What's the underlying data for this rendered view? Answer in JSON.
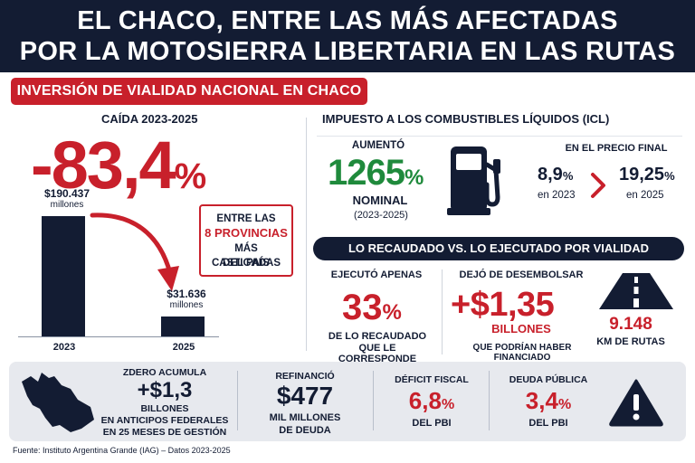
{
  "header": {
    "title_line1": "EL CHACO, ENTRE LAS MÁS AFECTADAS",
    "title_line2": "POR LA MOTOSIERRA LIBERTARIA EN LAS RUTAS"
  },
  "section_banner": "INVERSIÓN DE VIALIDAD NACIONAL EN CHACO",
  "drop": {
    "label": "CAÍDA 2023-2025",
    "value": "-83,4",
    "unit": "%",
    "chart_data": {
      "type": "bar",
      "categories": [
        "2023",
        "2025"
      ],
      "values": [
        190437,
        31636
      ],
      "value_labels": [
        "$190.437",
        "$31.636"
      ],
      "unit_label": "millones",
      "ylim": [
        0,
        200000
      ]
    },
    "provinces_box": [
      "ENTRE LAS",
      "8 PROVINCIAS",
      "MÁS CASTIGADAS",
      "DEL PAÍS"
    ]
  },
  "icl": {
    "title": "IMPUESTO A LOS COMBUSTIBLES LÍQUIDOS (ICL)",
    "aumento_label": "AUMENTÓ",
    "aumento_value": "1265",
    "aumento_unit": "%",
    "nominal_label": "NOMINAL",
    "years_label": "(2023-2025)",
    "icon": "fuel-pump-icon",
    "precio_label": "EN EL PRECIO FINAL",
    "rate_2023": "8,9",
    "rate_2023_label": "en 2023",
    "rate_2025": "19,25",
    "rate_2025_label": "en 2025",
    "unit": "%"
  },
  "recaudado": {
    "banner": "LO RECAUDADO VS. LO EJECUTADO POR VIALIDAD",
    "ejecuto_label": "EJECUTÓ APENAS",
    "ejecuto_value": "33",
    "ejecuto_unit": "%",
    "ejecuto_caption_1": "DE LO RECAUDADO",
    "ejecuto_caption_2": "QUE LE CORRESPONDE",
    "dejo_label": "DEJÓ DE DESEMBOLSAR",
    "dejo_value": "+$1,35",
    "dejo_unit": "BILLONES",
    "dejo_caption": "QUE PODRÍAN HABER FINANCIADO",
    "road_icon": "road-icon",
    "km_value": "9.148",
    "km_label": "KM DE RUTAS"
  },
  "bottom": {
    "map_icon": "chaco-map-icon",
    "zdero_label": "ZDERO ACUMULA",
    "zdero_value": "+$1,3",
    "zdero_unit": "BILLONES",
    "zdero_caption_1": "EN ANTICIPOS FEDERALES",
    "zdero_caption_2": "EN 25 MESES DE GESTIÓN",
    "refin_label": "REFINANCIÓ",
    "refin_value": "$477",
    "refin_caption_1": "MIL MILLONES",
    "refin_caption_2": "DE DEUDA",
    "deficit_label": "DÉFICIT FISCAL",
    "deficit_value": "6,8",
    "deficit_caption": "DEL PBI",
    "deuda_label": "DEUDA PÚBLICA",
    "deuda_value": "3,4",
    "deuda_caption": "DEL PBI",
    "unit": "%",
    "warning_icon": "warning-icon"
  },
  "source": "Fuente: Instituto Argentina Grande (IAG) – Datos 2023-2025",
  "colors": {
    "navy": "#131c33",
    "red": "#c8202b",
    "green": "#1f8a3c",
    "strip": "#e7e9ee"
  }
}
